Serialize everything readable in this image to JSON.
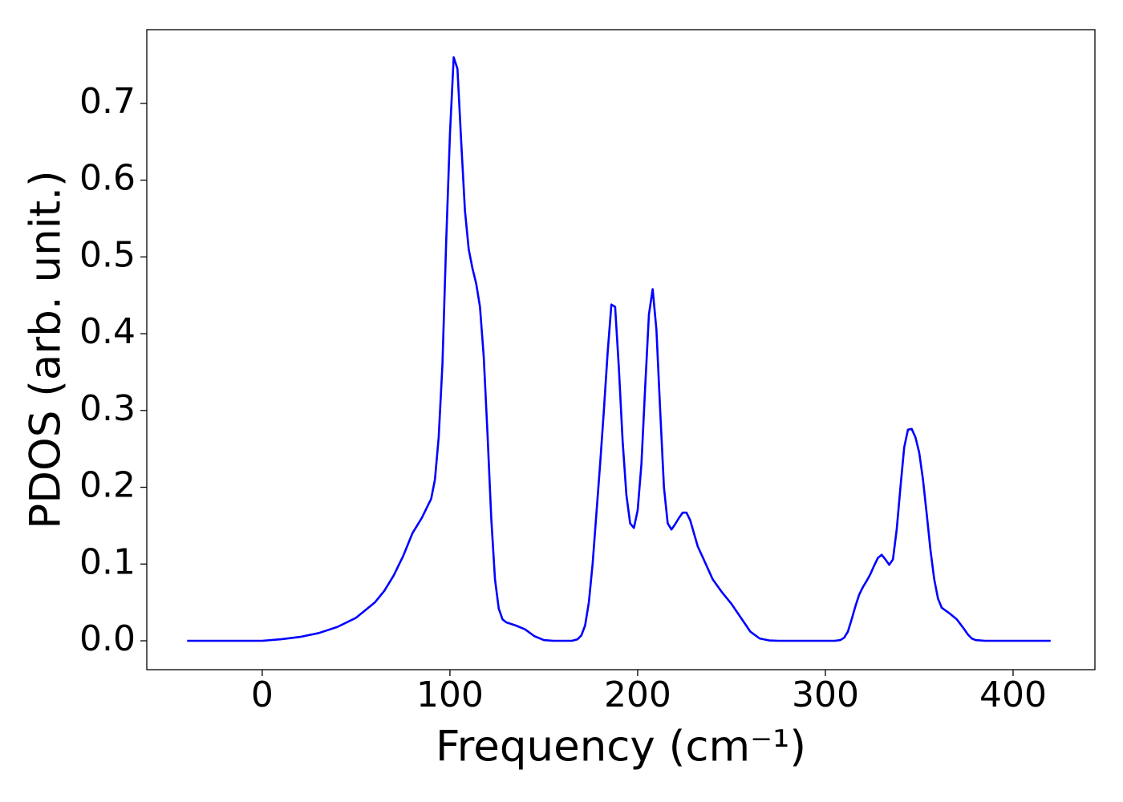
{
  "chart_data": {
    "type": "line",
    "xlabel": "Frequency (cm⁻¹)",
    "ylabel": "PDOS (arb. unit.)",
    "x": [
      -40,
      -20,
      0,
      10,
      20,
      30,
      40,
      50,
      60,
      65,
      70,
      75,
      80,
      85,
      88,
      90,
      92,
      94,
      96,
      98,
      100,
      102,
      104,
      106,
      108,
      110,
      112,
      114,
      116,
      118,
      120,
      122,
      124,
      126,
      128,
      130,
      135,
      140,
      145,
      150,
      155,
      165,
      168,
      170,
      172,
      174,
      176,
      178,
      180,
      182,
      184,
      186,
      188,
      190,
      192,
      194,
      196,
      198,
      200,
      202,
      204,
      206,
      208,
      210,
      212,
      214,
      216,
      218,
      220,
      222,
      224,
      226,
      228,
      230,
      232,
      235,
      240,
      245,
      250,
      255,
      260,
      265,
      270,
      275,
      305,
      308,
      310,
      312,
      314,
      316,
      318,
      320,
      322,
      324,
      326,
      328,
      330,
      332,
      334,
      336,
      338,
      340,
      342,
      344,
      346,
      348,
      350,
      352,
      354,
      356,
      358,
      360,
      362,
      366,
      370,
      374,
      376,
      378,
      380,
      385,
      420
    ],
    "series": [
      {
        "name": "PDOS",
        "color": "#0000ff",
        "values": [
          0,
          0,
          0,
          0.002,
          0.005,
          0.01,
          0.018,
          0.03,
          0.05,
          0.065,
          0.085,
          0.11,
          0.14,
          0.16,
          0.175,
          0.185,
          0.21,
          0.265,
          0.36,
          0.52,
          0.66,
          0.76,
          0.745,
          0.65,
          0.56,
          0.51,
          0.485,
          0.465,
          0.435,
          0.37,
          0.27,
          0.16,
          0.08,
          0.042,
          0.028,
          0.024,
          0.02,
          0.015,
          0.006,
          0.001,
          0,
          0,
          0.002,
          0.007,
          0.02,
          0.05,
          0.1,
          0.165,
          0.23,
          0.3,
          0.375,
          0.438,
          0.435,
          0.355,
          0.26,
          0.19,
          0.153,
          0.147,
          0.17,
          0.23,
          0.33,
          0.425,
          0.458,
          0.405,
          0.3,
          0.2,
          0.153,
          0.145,
          0.152,
          0.16,
          0.167,
          0.167,
          0.157,
          0.14,
          0.123,
          0.107,
          0.08,
          0.063,
          0.048,
          0.03,
          0.012,
          0.003,
          0.0005,
          0,
          0,
          0.001,
          0.004,
          0.012,
          0.028,
          0.045,
          0.06,
          0.07,
          0.078,
          0.087,
          0.098,
          0.108,
          0.112,
          0.106,
          0.099,
          0.106,
          0.145,
          0.2,
          0.252,
          0.275,
          0.276,
          0.265,
          0.245,
          0.21,
          0.165,
          0.118,
          0.08,
          0.055,
          0.043,
          0.036,
          0.028,
          0.015,
          0.008,
          0.003,
          0.001,
          0,
          0
        ]
      }
    ],
    "xlim": [
      -61.5,
      443.6
    ],
    "ylim": [
      -0.0376,
      0.796
    ],
    "xticks": [
      0,
      100,
      200,
      300,
      400
    ],
    "yticks": [
      {
        "value": 0,
        "label": "0.0"
      },
      0.1,
      0.2,
      0.3,
      0.4,
      0.5,
      0.6,
      0.7
    ]
  }
}
